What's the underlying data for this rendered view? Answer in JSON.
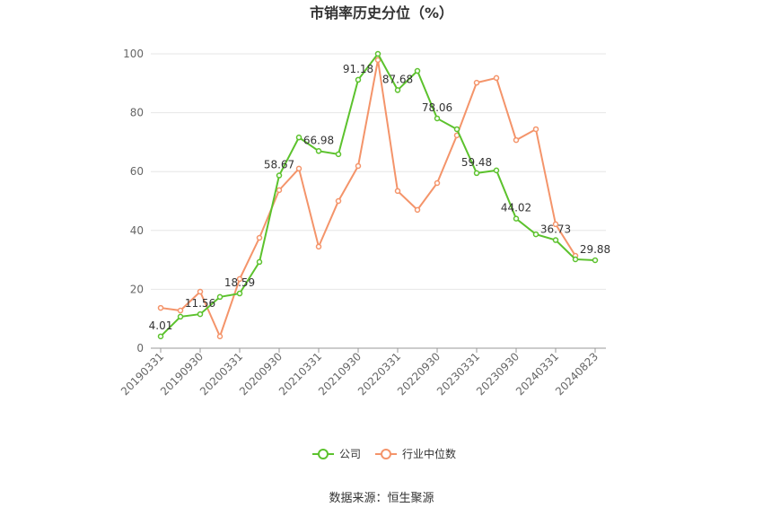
{
  "chart_data": {
    "type": "line",
    "title": "市销率历史分位（%）",
    "categories": [
      "20190331",
      null,
      "20190930",
      null,
      "20200331",
      null,
      "20200930",
      null,
      "20210331",
      null,
      "20210930",
      null,
      "20220331",
      null,
      "20220930",
      null,
      "20230331",
      null,
      "20230930",
      null,
      "20240331",
      null,
      "20240823"
    ],
    "series": [
      {
        "name": "公司",
        "color": "#5cc22d",
        "values": [
          4.01,
          10.7,
          11.56,
          17.4,
          18.59,
          29.3,
          58.67,
          71.6,
          66.98,
          65.9,
          91.18,
          100,
          87.68,
          94.2,
          78.06,
          74.4,
          59.48,
          60.4,
          44.02,
          38.7,
          36.73,
          30.2,
          29.88
        ],
        "value_labels": [
          "4.01",
          null,
          "11.56",
          null,
          "18.59",
          null,
          "58.67",
          null,
          "66.98",
          null,
          "91.18",
          null,
          "87.68",
          null,
          "78.06",
          null,
          "59.48",
          null,
          "44.02",
          null,
          "36.73",
          null,
          "29.88"
        ]
      },
      {
        "name": "行业中位数",
        "color": "#f4946a",
        "values": [
          13.7,
          12.8,
          19.2,
          4.0,
          23.5,
          37.5,
          53.7,
          61.0,
          34.5,
          50.0,
          61.9,
          97.9,
          53.4,
          47.0,
          56.1,
          72.3,
          90.2,
          91.8,
          70.7,
          74.4,
          42.1,
          31.4,
          null
        ]
      }
    ],
    "ylim": [
      0,
      100
    ],
    "yticks": [
      0,
      20,
      40,
      60,
      80,
      100
    ],
    "grid": true,
    "legend": "bottom",
    "source": "数据来源：恒生聚源"
  }
}
